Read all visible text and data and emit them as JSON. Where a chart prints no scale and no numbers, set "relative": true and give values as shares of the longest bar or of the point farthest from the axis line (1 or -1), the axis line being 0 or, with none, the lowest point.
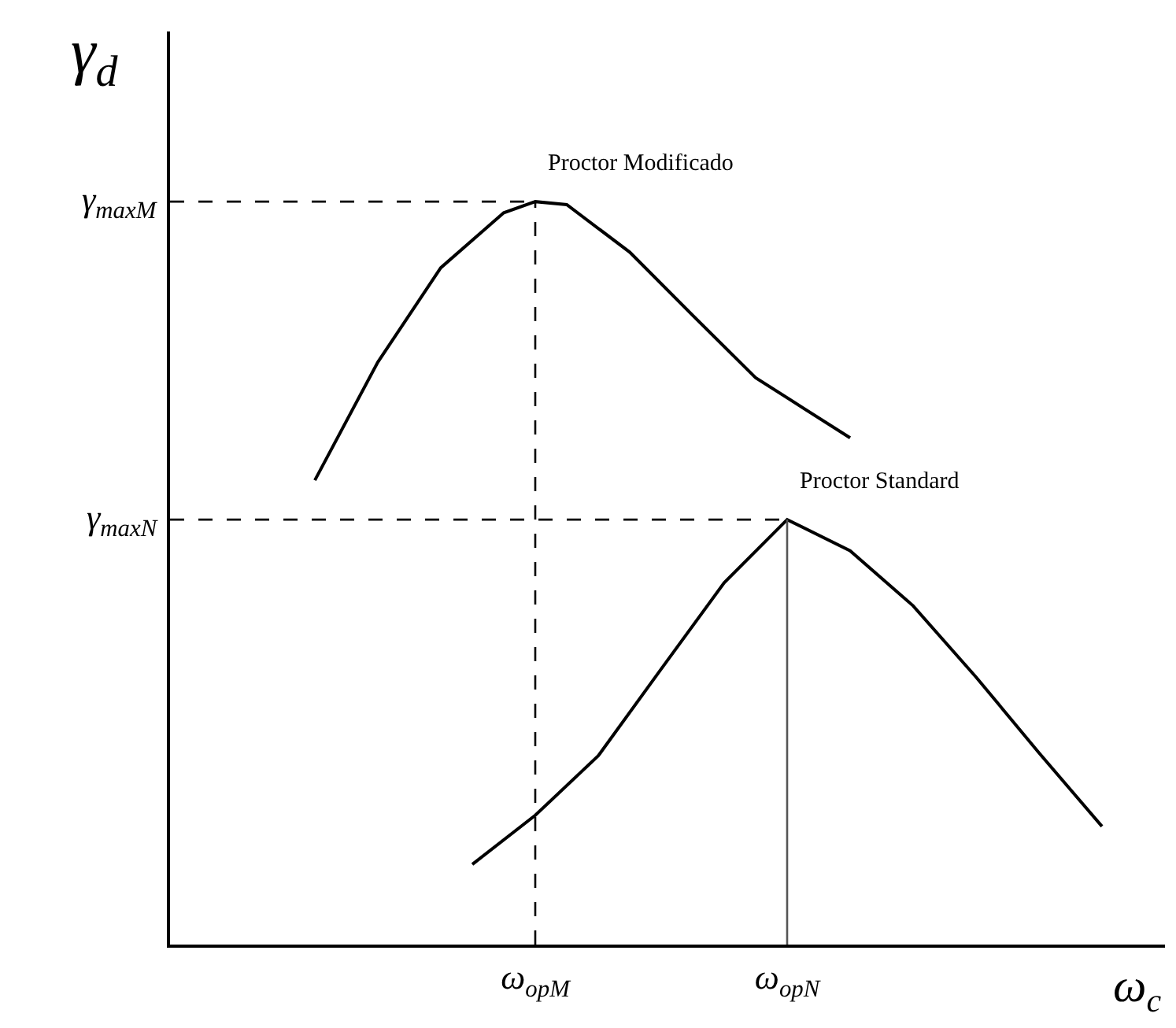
{
  "chart_data": {
    "type": "line",
    "relative": true,
    "xlabel": "ω$_{c}$",
    "ylabel": "γ$_{d}$",
    "categories": [
      null,
      null,
      null,
      null,
      null,
      null,
      null,
      null,
      null,
      null,
      null,
      "ω$_{opM}$",
      null,
      null,
      null,
      null,
      null,
      null,
      null,
      "ω$_{opN}$",
      null,
      null,
      null,
      null,
      null,
      null,
      null,
      null,
      null,
      null,
      null
    ],
    "series": [
      {
        "name": "Proctor Modificado",
        "color": "#000000",
        "values": [
          null,
          null,
          null,
          null,
          0.625,
          null,
          0.784,
          null,
          0.911,
          null,
          0.985,
          1.0,
          0.996,
          null,
          0.932,
          null,
          0.847,
          null,
          0.763,
          null,
          null,
          0.682,
          null,
          null,
          null,
          null,
          null,
          null,
          null,
          null,
          null
        ]
      },
      {
        "name": "Proctor Standard",
        "color": "#000000",
        "values": [
          null,
          null,
          null,
          null,
          null,
          null,
          null,
          null,
          null,
          0.108,
          null,
          0.174,
          null,
          0.254,
          null,
          0.371,
          null,
          0.487,
          null,
          0.572,
          null,
          0.53,
          null,
          0.456,
          null,
          0.36,
          null,
          0.258,
          null,
          0.159,
          null
        ]
      }
    ],
    "ref_lines": [
      {
        "axis": "y",
        "value": 1.0,
        "label": "γ$_{maxM}$",
        "line_style": "dashed",
        "color": "#000000"
      },
      {
        "axis": "y",
        "value": 0.572,
        "label": "γ$_{maxN}$",
        "line_style": "dashed",
        "color": "#000000"
      },
      {
        "axis": "x",
        "value": "ω$_{opM}$",
        "line_style": "dashed",
        "color": "#000000"
      },
      {
        "axis": "x",
        "value": "ω$_{opN}$",
        "line_style": "solid",
        "color": "#555555"
      }
    ],
    "legend": false,
    "grid": false,
    "marker": "none",
    "line_style": "solid"
  }
}
